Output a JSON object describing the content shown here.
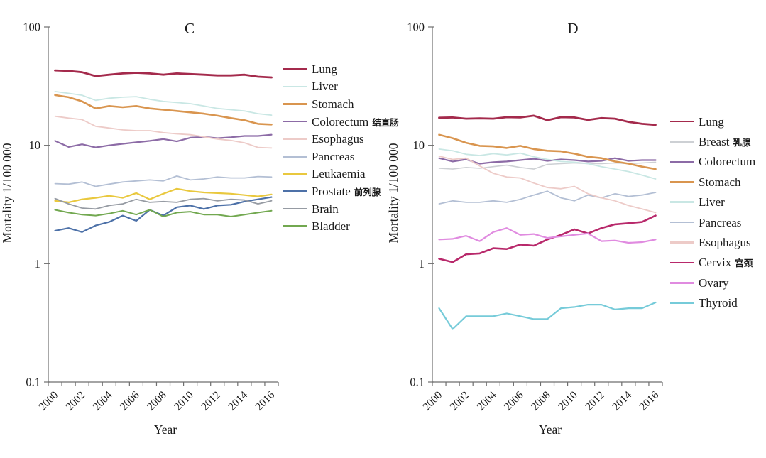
{
  "page": {
    "background": "#ffffff",
    "axis_color": "#6e6e6e"
  },
  "chart_data": [
    {
      "id": "C",
      "type": "line",
      "title": "C",
      "xlabel": "Year",
      "ylabel": "Mortality 1/100 000",
      "y_scale": "log",
      "ylim": [
        0.1,
        100
      ],
      "y_tick_labels": [
        "100",
        "10",
        "1",
        "0.1"
      ],
      "y_tick_values": [
        100,
        10,
        1,
        0.1
      ],
      "x": [
        2000,
        2001,
        2002,
        2003,
        2004,
        2005,
        2006,
        2007,
        2008,
        2009,
        2010,
        2011,
        2012,
        2013,
        2014,
        2015,
        2016
      ],
      "x_tick_labels": [
        "2000",
        "2002",
        "2004",
        "2006",
        "2008",
        "2010",
        "2012",
        "2014",
        "2016"
      ],
      "legend_position": "right",
      "grid": false,
      "series": [
        {
          "name": "Lung",
          "color": "#a42a4c",
          "line_width": 2.8,
          "values": [
            43,
            42.5,
            41.5,
            38.5,
            39.5,
            40.5,
            41,
            40.5,
            39.5,
            40.5,
            40,
            39.5,
            39,
            39,
            39.5,
            38,
            37.5
          ]
        },
        {
          "name": "Liver",
          "color": "#c9e7e4",
          "line_width": 1.8,
          "values": [
            28.5,
            27.5,
            26.5,
            24,
            25,
            25.5,
            25.8,
            24.5,
            23.5,
            23,
            22.5,
            21.5,
            20.5,
            20,
            19.5,
            18.5,
            18
          ]
        },
        {
          "name": "Stomach",
          "color": "#d9954f",
          "line_width": 2.6,
          "values": [
            26.6,
            25.5,
            23.5,
            20.5,
            21.5,
            21,
            21.5,
            20.5,
            20,
            19.5,
            19,
            18.5,
            17.8,
            17,
            16.3,
            15.2,
            15
          ]
        },
        {
          "name": "Colorectum",
          "name_cn": "结直肠",
          "color": "#8c6ba6",
          "line_width": 2.2,
          "values": [
            10.9,
            9.7,
            10.2,
            9.6,
            10,
            10.3,
            10.6,
            10.9,
            11.3,
            10.8,
            11.6,
            11.8,
            11.5,
            11.7,
            12,
            12,
            12.3
          ]
        },
        {
          "name": "Esophagus",
          "color": "#edcbc8",
          "line_width": 1.8,
          "values": [
            17.6,
            17,
            16.5,
            14.5,
            14,
            13.5,
            13.3,
            13.3,
            12.8,
            12.5,
            12.3,
            11.8,
            11.3,
            11,
            10.5,
            9.6,
            9.5
          ]
        },
        {
          "name": "Pancreas",
          "color": "#b3bfd4",
          "line_width": 1.8,
          "values": [
            4.75,
            4.7,
            4.9,
            4.5,
            4.7,
            4.9,
            5,
            5.1,
            5,
            5.5,
            5.1,
            5.2,
            5.4,
            5.3,
            5.3,
            5.45,
            5.4
          ]
        },
        {
          "name": "Leukaemia",
          "color": "#e9c83e",
          "line_width": 2.2,
          "values": [
            3.4,
            3.3,
            3.5,
            3.6,
            3.75,
            3.6,
            3.95,
            3.5,
            3.9,
            4.3,
            4.1,
            4,
            3.95,
            3.9,
            3.8,
            3.7,
            3.85
          ]
        },
        {
          "name": "Prostate",
          "name_cn": "前列腺",
          "color": "#4d71a8",
          "line_width": 2.2,
          "values": [
            1.9,
            2,
            1.85,
            2.1,
            2.25,
            2.55,
            2.3,
            2.85,
            2.55,
            3,
            3.1,
            2.9,
            3.1,
            3.15,
            3.35,
            3.5,
            3.65
          ]
        },
        {
          "name": "Brain",
          "color": "#969ba3",
          "line_width": 1.8,
          "values": [
            3.55,
            3.2,
            2.95,
            2.9,
            3.1,
            3.2,
            3.5,
            3.3,
            3.35,
            3.3,
            3.5,
            3.55,
            3.4,
            3.5,
            3.45,
            3.2,
            3.4
          ]
        },
        {
          "name": "Bladder",
          "color": "#72a850",
          "line_width": 2.0,
          "values": [
            2.85,
            2.7,
            2.6,
            2.55,
            2.65,
            2.8,
            2.6,
            2.85,
            2.5,
            2.7,
            2.75,
            2.6,
            2.6,
            2.5,
            2.6,
            2.7,
            2.8
          ]
        }
      ]
    },
    {
      "id": "D",
      "type": "line",
      "title": "D",
      "xlabel": "Year",
      "ylabel": "Mortality 1/100 000",
      "y_scale": "log",
      "ylim": [
        0.1,
        100
      ],
      "y_tick_labels": [
        "100",
        "10",
        "1",
        "0.1"
      ],
      "y_tick_values": [
        100,
        10,
        1,
        0.1
      ],
      "x": [
        2000,
        2001,
        2002,
        2003,
        2004,
        2005,
        2006,
        2007,
        2008,
        2009,
        2010,
        2011,
        2012,
        2013,
        2014,
        2015,
        2016
      ],
      "x_tick_labels": [
        "2000",
        "2002",
        "2004",
        "2006",
        "2008",
        "2010",
        "2012",
        "2014",
        "2016"
      ],
      "legend_position": "right",
      "grid": false,
      "series": [
        {
          "name": "Lung",
          "color": "#a42a4c",
          "line_width": 2.8,
          "values": [
            17.1,
            17.2,
            16.8,
            16.9,
            16.8,
            17.3,
            17.2,
            17.8,
            16.3,
            17.3,
            17.2,
            16.4,
            17,
            16.8,
            15.8,
            15.2,
            14.9
          ]
        },
        {
          "name": "Breast",
          "name_cn": "乳腺",
          "color": "#cdd0d4",
          "line_width": 1.6,
          "values": [
            6.4,
            6.3,
            6.5,
            6.4,
            6.6,
            6.8,
            6.5,
            6.3,
            6.9,
            7,
            7.1,
            7,
            7,
            7.1,
            7,
            7.1,
            7.2
          ]
        },
        {
          "name": "Colorectum",
          "color": "#8c6ba6",
          "line_width": 2.2,
          "values": [
            7.8,
            7.3,
            7.6,
            7,
            7.2,
            7.3,
            7.5,
            7.7,
            7.4,
            7.6,
            7.5,
            7.3,
            7.4,
            7.8,
            7.4,
            7.5,
            7.5
          ]
        },
        {
          "name": "Stomach",
          "color": "#d9954f",
          "line_width": 2.6,
          "values": [
            12.3,
            11.5,
            10.5,
            9.9,
            9.8,
            9.5,
            9.9,
            9.3,
            9,
            8.9,
            8.5,
            8,
            7.8,
            7.3,
            7,
            6.6,
            6.3
          ]
        },
        {
          "name": "Liver",
          "color": "#c9e7e4",
          "line_width": 1.8,
          "values": [
            9.3,
            9,
            8.4,
            8.2,
            8.5,
            8.3,
            8.6,
            8,
            7.6,
            7.3,
            7.2,
            7,
            6.6,
            6.3,
            6,
            5.6,
            5.2
          ]
        },
        {
          "name": "Pancreas",
          "color": "#b3bfd4",
          "line_width": 1.8,
          "values": [
            3.2,
            3.4,
            3.3,
            3.3,
            3.4,
            3.3,
            3.5,
            3.8,
            4.1,
            3.6,
            3.4,
            3.8,
            3.6,
            3.9,
            3.7,
            3.8,
            4
          ]
        },
        {
          "name": "Esophagus",
          "color": "#edcbc8",
          "line_width": 1.8,
          "values": [
            8.1,
            7.6,
            7.8,
            6.7,
            5.8,
            5.4,
            5.3,
            4.8,
            4.4,
            4.3,
            4.5,
            3.9,
            3.6,
            3.4,
            3.1,
            2.9,
            2.7
          ]
        },
        {
          "name": "Cervix",
          "name_cn": "宫颈",
          "color": "#b8296b",
          "line_width": 2.6,
          "values": [
            1.1,
            1.03,
            1.2,
            1.22,
            1.35,
            1.33,
            1.45,
            1.42,
            1.6,
            1.75,
            1.95,
            1.8,
            2,
            2.15,
            2.2,
            2.25,
            2.55
          ]
        },
        {
          "name": "Ovary",
          "color": "#e08be0",
          "line_width": 2.2,
          "values": [
            1.6,
            1.62,
            1.72,
            1.55,
            1.85,
            2,
            1.75,
            1.78,
            1.65,
            1.7,
            1.75,
            1.8,
            1.55,
            1.57,
            1.5,
            1.52,
            1.6
          ]
        },
        {
          "name": "Thyroid",
          "color": "#76cbd9",
          "line_width": 2.2,
          "values": [
            0.42,
            0.28,
            0.36,
            0.36,
            0.36,
            0.38,
            0.36,
            0.34,
            0.34,
            0.42,
            0.43,
            0.45,
            0.45,
            0.41,
            0.42,
            0.42,
            0.47
          ]
        }
      ]
    }
  ]
}
